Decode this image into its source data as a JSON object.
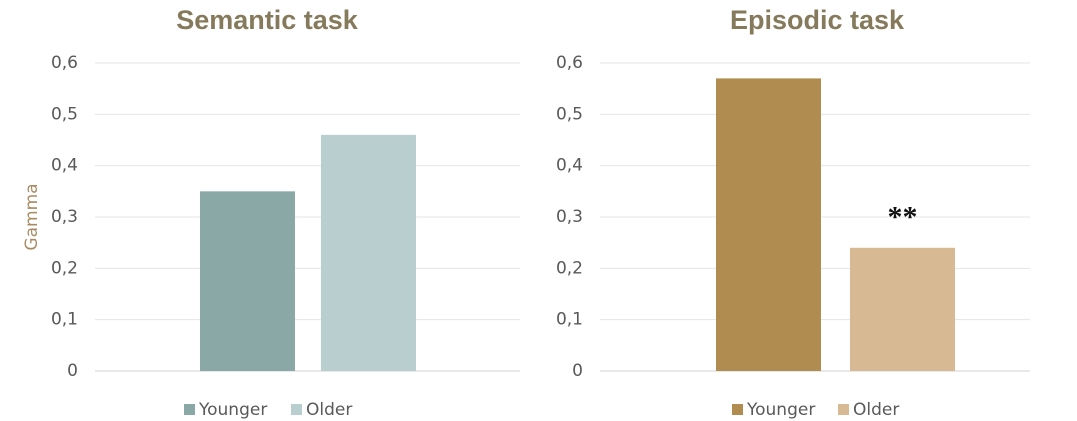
{
  "chart_data": [
    {
      "type": "bar",
      "title": "Semantic task",
      "ylabel": "Gamma",
      "series": [
        {
          "name": "Younger",
          "color": "#8aa8a6",
          "values": [
            0.35
          ]
        },
        {
          "name": "Older",
          "color": "#b9cfcf",
          "values": [
            0.46
          ]
        }
      ],
      "ylim": [
        0,
        0.6
      ],
      "yticks": [
        0,
        {
          "value": 0.1,
          "label": "0,1"
        },
        {
          "value": 0.2,
          "label": "0,2"
        },
        {
          "value": 0.3,
          "label": "0,3"
        },
        {
          "value": 0.4,
          "label": "0,4"
        },
        {
          "value": 0.5,
          "label": "0,5"
        },
        {
          "value": 0.6,
          "label": "0,6"
        }
      ],
      "grid": true,
      "legend": "bottom"
    },
    {
      "type": "bar",
      "title": "Episodic task",
      "series": [
        {
          "name": "Younger",
          "color": "#b08c50",
          "values": [
            0.57
          ]
        },
        {
          "name": "Older",
          "color": "#d7b994",
          "values": [
            0.24
          ]
        }
      ],
      "annotations": [
        {
          "text": "**",
          "series": 1
        }
      ],
      "ylim": [
        0,
        0.6
      ],
      "yticks": [
        0,
        {
          "value": 0.1,
          "label": "0,1"
        },
        {
          "value": 0.2,
          "label": "0,2"
        },
        {
          "value": 0.3,
          "label": "0,3"
        },
        {
          "value": 0.4,
          "label": "0,4"
        },
        {
          "value": 0.5,
          "label": "0,5"
        },
        {
          "value": 0.6,
          "label": "0,6"
        }
      ],
      "grid": true,
      "legend": "bottom"
    }
  ]
}
